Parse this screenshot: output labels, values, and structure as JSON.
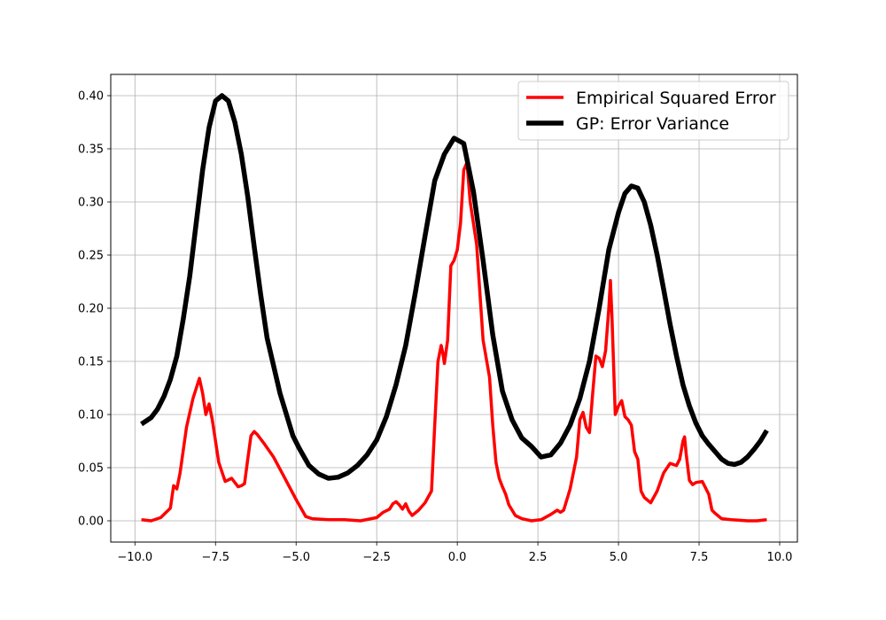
{
  "chart_data": {
    "type": "line",
    "title": "",
    "xlabel": "",
    "ylabel": "",
    "xlim": [
      -10.75,
      10.55
    ],
    "ylim": [
      -0.02,
      0.42
    ],
    "xticks": [
      -10.0,
      -7.5,
      -5.0,
      -2.5,
      0.0,
      2.5,
      5.0,
      7.5,
      10.0
    ],
    "xtick_labels": [
      "−10.0",
      "−7.5",
      "−5.0",
      "−2.5",
      "0.0",
      "2.5",
      "5.0",
      "7.5",
      "10.0"
    ],
    "yticks": [
      0.0,
      0.05,
      0.1,
      0.15,
      0.2,
      0.25,
      0.3,
      0.35,
      0.4
    ],
    "ytick_labels": [
      "0.00",
      "0.05",
      "0.10",
      "0.15",
      "0.20",
      "0.25",
      "0.30",
      "0.35",
      "0.40"
    ],
    "grid": true,
    "legend_position": "top-right",
    "series": [
      {
        "name": "Empirical Squared Error",
        "color": "#ff0000",
        "x": [
          -9.8,
          -9.5,
          -9.2,
          -9.0,
          -8.9,
          -8.8,
          -8.7,
          -8.6,
          -8.4,
          -8.2,
          -8.0,
          -7.9,
          -7.8,
          -7.7,
          -7.6,
          -7.4,
          -7.2,
          -7.0,
          -6.8,
          -6.7,
          -6.6,
          -6.5,
          -6.4,
          -6.3,
          -6.2,
          -6.0,
          -5.7,
          -5.4,
          -5.0,
          -4.7,
          -4.5,
          -4.0,
          -3.5,
          -3.0,
          -2.5,
          -2.3,
          -2.1,
          -2.0,
          -1.9,
          -1.8,
          -1.7,
          -1.6,
          -1.5,
          -1.4,
          -1.2,
          -1.0,
          -0.8,
          -0.7,
          -0.6,
          -0.5,
          -0.45,
          -0.4,
          -0.3,
          -0.2,
          -0.1,
          0.0,
          0.1,
          0.2,
          0.3,
          0.4,
          0.5,
          0.6,
          0.8,
          1.0,
          1.1,
          1.2,
          1.3,
          1.4,
          1.5,
          1.6,
          1.8,
          2.0,
          2.3,
          2.6,
          2.9,
          3.1,
          3.2,
          3.3,
          3.5,
          3.7,
          3.8,
          3.9,
          4.0,
          4.1,
          4.2,
          4.3,
          4.4,
          4.5,
          4.6,
          4.7,
          4.75,
          4.8,
          4.9,
          5.0,
          5.1,
          5.2,
          5.3,
          5.4,
          5.5,
          5.6,
          5.7,
          5.8,
          6.0,
          6.2,
          6.4,
          6.6,
          6.8,
          6.9,
          7.0,
          7.05,
          7.1,
          7.2,
          7.3,
          7.4,
          7.6,
          7.8,
          7.9,
          8.0,
          8.2,
          8.5,
          9.0,
          9.3,
          9.6
        ],
        "y": [
          0.001,
          0.0,
          0.003,
          0.009,
          0.012,
          0.033,
          0.03,
          0.045,
          0.088,
          0.115,
          0.134,
          0.12,
          0.1,
          0.11,
          0.095,
          0.055,
          0.037,
          0.04,
          0.032,
          0.033,
          0.035,
          0.058,
          0.08,
          0.084,
          0.081,
          0.073,
          0.06,
          0.043,
          0.02,
          0.004,
          0.002,
          0.001,
          0.001,
          0.0,
          0.003,
          0.008,
          0.011,
          0.016,
          0.018,
          0.015,
          0.011,
          0.016,
          0.009,
          0.005,
          0.01,
          0.017,
          0.028,
          0.09,
          0.15,
          0.165,
          0.158,
          0.148,
          0.17,
          0.24,
          0.245,
          0.255,
          0.28,
          0.33,
          0.337,
          0.3,
          0.28,
          0.26,
          0.17,
          0.135,
          0.09,
          0.055,
          0.04,
          0.032,
          0.025,
          0.015,
          0.005,
          0.002,
          0.0,
          0.001,
          0.006,
          0.01,
          0.008,
          0.01,
          0.03,
          0.06,
          0.095,
          0.102,
          0.088,
          0.083,
          0.12,
          0.155,
          0.153,
          0.145,
          0.16,
          0.2,
          0.226,
          0.19,
          0.1,
          0.108,
          0.113,
          0.098,
          0.095,
          0.09,
          0.065,
          0.058,
          0.028,
          0.022,
          0.017,
          0.028,
          0.045,
          0.054,
          0.052,
          0.058,
          0.075,
          0.079,
          0.063,
          0.038,
          0.034,
          0.036,
          0.037,
          0.025,
          0.01,
          0.007,
          0.002,
          0.001,
          0.0,
          0.0,
          0.001
        ]
      },
      {
        "name": "GP: Error Variance",
        "color": "#000000",
        "x": [
          -9.8,
          -9.5,
          -9.3,
          -9.1,
          -8.9,
          -8.7,
          -8.5,
          -8.3,
          -8.1,
          -7.9,
          -7.7,
          -7.5,
          -7.3,
          -7.1,
          -6.9,
          -6.7,
          -6.5,
          -6.3,
          -6.1,
          -5.9,
          -5.7,
          -5.5,
          -5.3,
          -5.1,
          -4.9,
          -4.6,
          -4.3,
          -4.0,
          -3.7,
          -3.4,
          -3.1,
          -2.8,
          -2.5,
          -2.2,
          -1.9,
          -1.6,
          -1.3,
          -1.0,
          -0.7,
          -0.4,
          -0.1,
          0.2,
          0.5,
          0.8,
          1.1,
          1.4,
          1.7,
          2.0,
          2.3,
          2.6,
          2.9,
          3.2,
          3.5,
          3.8,
          4.1,
          4.4,
          4.7,
          5.0,
          5.2,
          5.4,
          5.6,
          5.8,
          6.0,
          6.2,
          6.4,
          6.6,
          6.8,
          7.0,
          7.2,
          7.4,
          7.6,
          7.8,
          8.0,
          8.2,
          8.4,
          8.6,
          8.8,
          9.0,
          9.2,
          9.4,
          9.6
        ],
        "y": [
          0.091,
          0.097,
          0.105,
          0.117,
          0.133,
          0.155,
          0.19,
          0.23,
          0.28,
          0.33,
          0.37,
          0.395,
          0.4,
          0.395,
          0.375,
          0.345,
          0.305,
          0.258,
          0.213,
          0.172,
          0.146,
          0.12,
          0.1,
          0.08,
          0.068,
          0.052,
          0.044,
          0.04,
          0.041,
          0.045,
          0.052,
          0.062,
          0.076,
          0.098,
          0.128,
          0.165,
          0.215,
          0.268,
          0.32,
          0.345,
          0.36,
          0.355,
          0.31,
          0.245,
          0.175,
          0.122,
          0.095,
          0.078,
          0.07,
          0.06,
          0.062,
          0.073,
          0.09,
          0.115,
          0.15,
          0.2,
          0.255,
          0.29,
          0.308,
          0.315,
          0.313,
          0.3,
          0.278,
          0.25,
          0.218,
          0.185,
          0.155,
          0.128,
          0.108,
          0.092,
          0.08,
          0.072,
          0.065,
          0.058,
          0.054,
          0.053,
          0.055,
          0.06,
          0.067,
          0.075,
          0.085
        ]
      }
    ]
  }
}
